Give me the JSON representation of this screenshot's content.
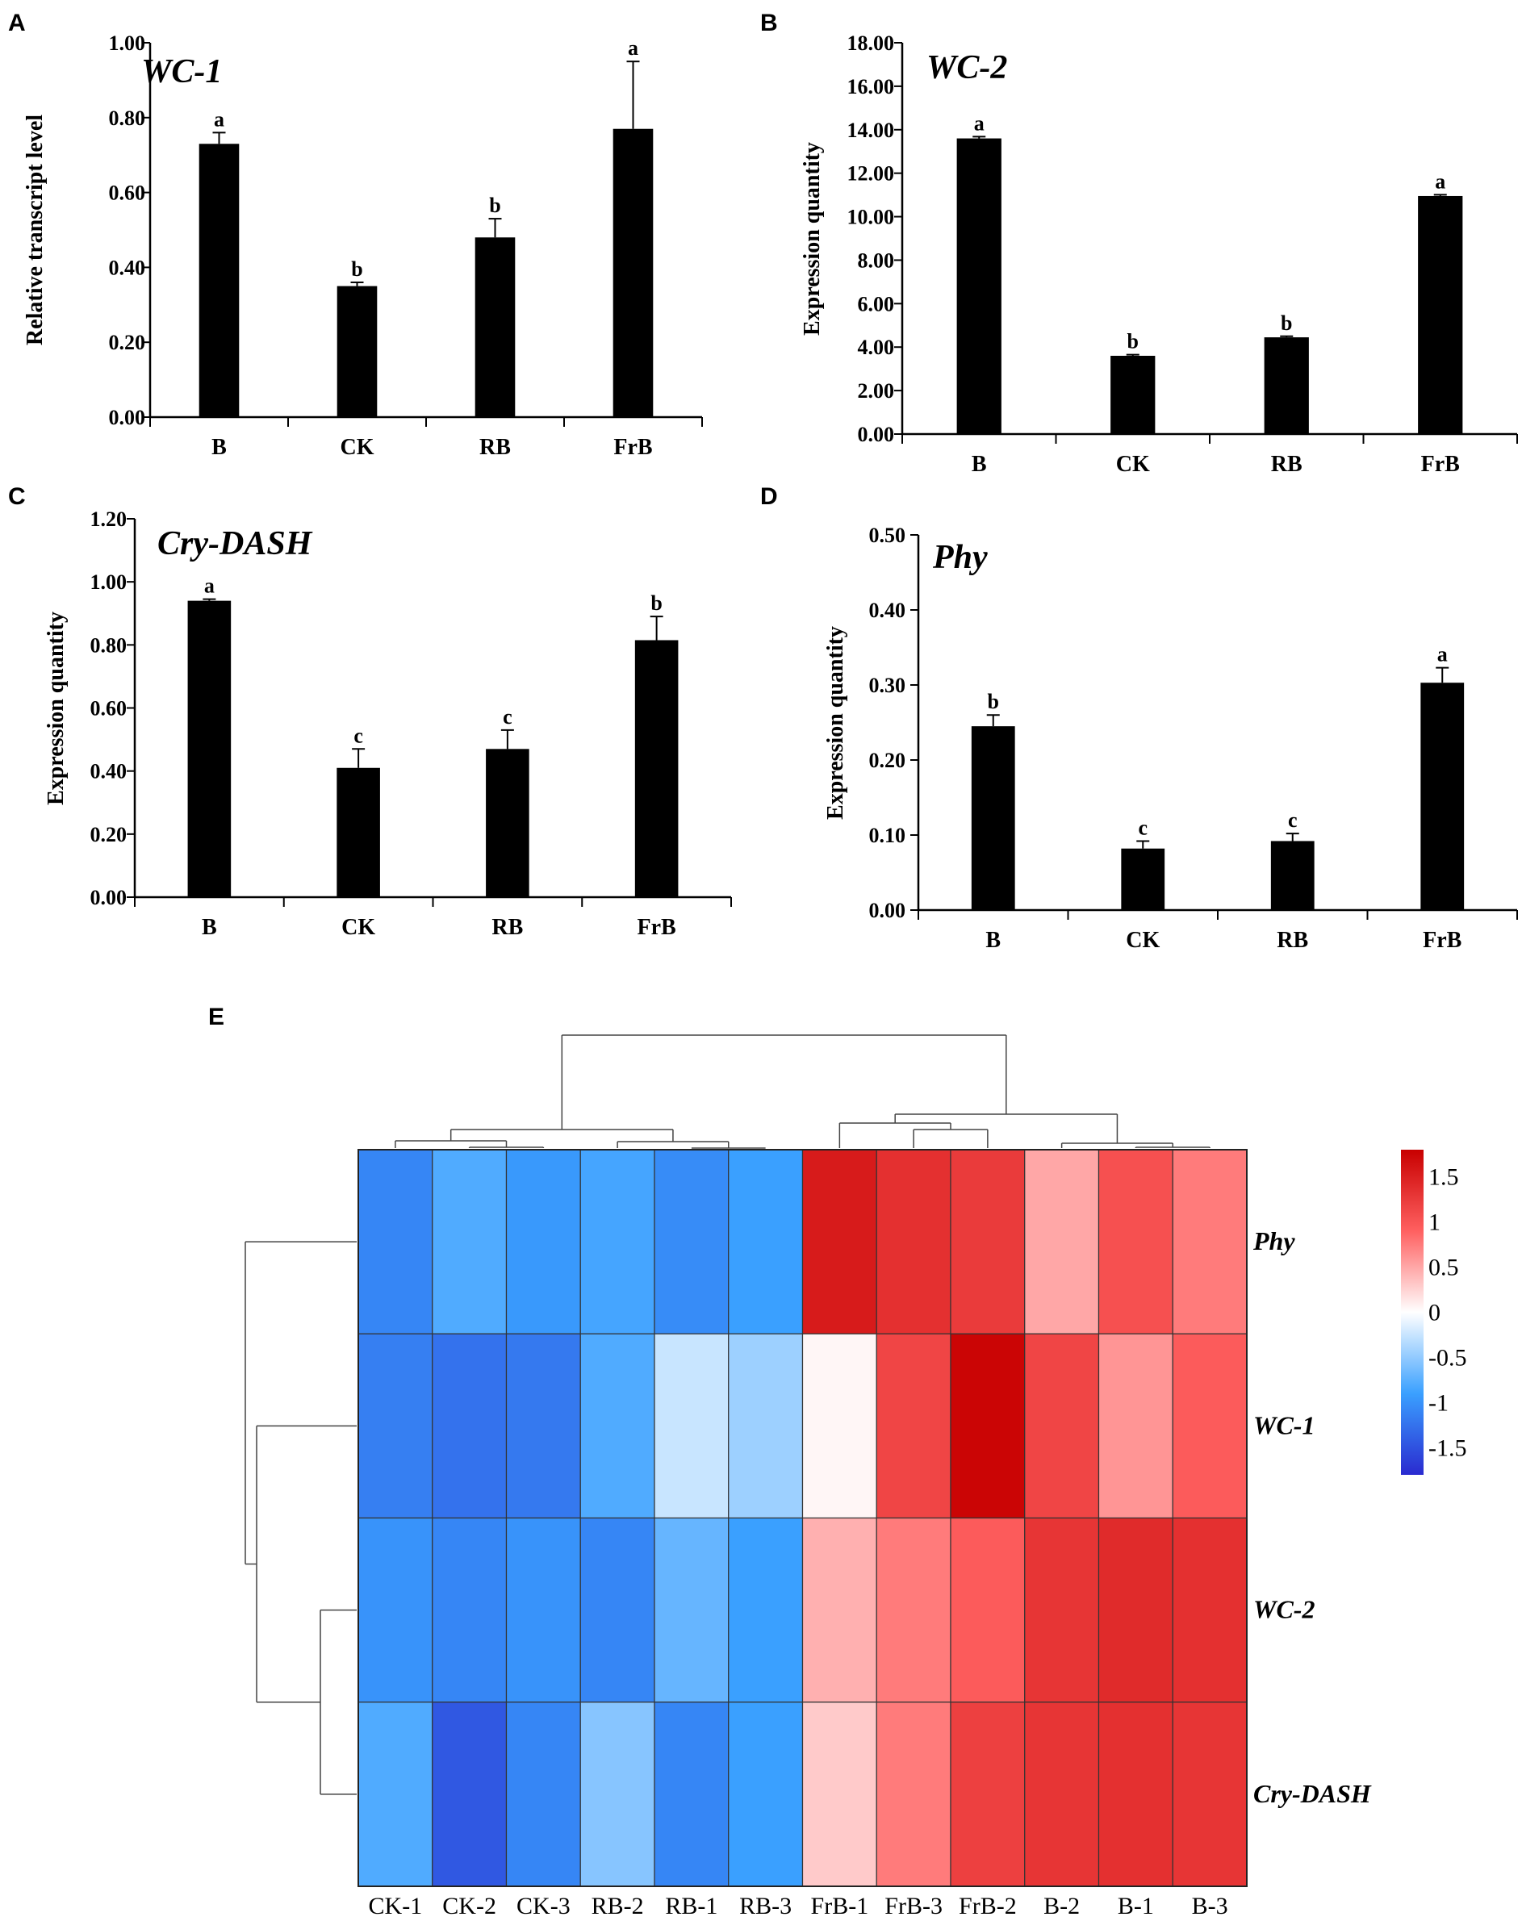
{
  "panels": {
    "A": "A",
    "B": "B",
    "C": "C",
    "D": "D",
    "E": "E"
  },
  "colors": {
    "bar": "#000000",
    "neg": "#2020c8",
    "mid": "#ffffff",
    "pos": "#c80000"
  },
  "chart_data": [
    {
      "type": "bar",
      "panel": "A",
      "title": "WC-1",
      "ylabel": "Relative transcript level",
      "xlabel": "",
      "categories": [
        "B",
        "CK",
        "RB",
        "FrB"
      ],
      "values": [
        0.73,
        0.35,
        0.48,
        0.77
      ],
      "errors": [
        0.03,
        0.01,
        0.05,
        0.18
      ],
      "significance": [
        "a",
        "b",
        "b",
        "a"
      ],
      "ylim": [
        0,
        1.0
      ],
      "yticks": [
        "0.00",
        "0.20",
        "0.40",
        "0.60",
        "0.80",
        "1.00"
      ]
    },
    {
      "type": "bar",
      "panel": "B",
      "title": "WC-2",
      "ylabel": "Expression quantity",
      "xlabel": "",
      "categories": [
        "B",
        "CK",
        "RB",
        "FrB"
      ],
      "values": [
        13.6,
        3.6,
        4.45,
        10.95
      ],
      "errors": [
        0.08,
        0.05,
        0.05,
        0.06
      ],
      "significance": [
        "a",
        "b",
        "b",
        "a"
      ],
      "ylim": [
        0,
        18.0
      ],
      "yticks": [
        "0.00",
        "2.00",
        "4.00",
        "6.00",
        "8.00",
        "10.00",
        "12.00",
        "14.00",
        "16.00",
        "18.00"
      ]
    },
    {
      "type": "bar",
      "panel": "C",
      "title": "Cry-DASH",
      "ylabel": "Expression quantity",
      "xlabel": "",
      "categories": [
        "B",
        "CK",
        "RB",
        "FrB"
      ],
      "values": [
        0.94,
        0.41,
        0.47,
        0.815
      ],
      "errors": [
        0.005,
        0.06,
        0.06,
        0.075
      ],
      "significance": [
        "a",
        "c",
        "c",
        "b"
      ],
      "ylim": [
        0,
        1.2
      ],
      "yticks": [
        "0.00",
        "0.20",
        "0.40",
        "0.60",
        "0.80",
        "1.00",
        "1.20"
      ]
    },
    {
      "type": "bar",
      "panel": "D",
      "title": "Phy",
      "ylabel": "Expression quantity",
      "xlabel": "",
      "categories": [
        "B",
        "CK",
        "RB",
        "FrB"
      ],
      "values": [
        0.245,
        0.082,
        0.092,
        0.303
      ],
      "errors": [
        0.015,
        0.01,
        0.01,
        0.02
      ],
      "significance": [
        "b",
        "c",
        "c",
        "a"
      ],
      "ylim": [
        0,
        0.5
      ],
      "yticks": [
        "0.00",
        "0.10",
        "0.20",
        "0.30",
        "0.40",
        "0.50"
      ]
    },
    {
      "type": "heatmap",
      "panel": "E",
      "columns": [
        "CK-1",
        "CK-2",
        "CK-3",
        "RB-2",
        "RB-1",
        "RB-3",
        "FrB-1",
        "FrB-3",
        "FrB-2",
        "B-2",
        "B-1",
        "B-3"
      ],
      "rows": [
        "Phy",
        "WC-1",
        "WC-2",
        "Cry-DASH"
      ],
      "values": [
        [
          -1.1,
          -0.8,
          -0.95,
          -0.85,
          -1.05,
          -0.9,
          1.55,
          1.35,
          1.25,
          0.5,
          1.05,
          0.75
        ],
        [
          -1.15,
          -1.25,
          -1.2,
          -0.8,
          -0.25,
          -0.45,
          0.05,
          1.15,
          1.75,
          1.15,
          0.6,
          0.95
        ],
        [
          -1.0,
          -1.1,
          -1.0,
          -1.1,
          -0.7,
          -0.9,
          0.45,
          0.75,
          0.95,
          1.3,
          1.4,
          1.35
        ],
        [
          -0.8,
          -1.45,
          -1.1,
          -0.55,
          -1.1,
          -0.9,
          0.3,
          0.75,
          1.2,
          1.3,
          1.35,
          1.3
        ]
      ],
      "colorbar": {
        "min": -1.8,
        "max": 1.8,
        "ticks": [
          "1.5",
          "1",
          "0.5",
          "0",
          "-0.5",
          "-1",
          "-1.5"
        ]
      },
      "column_dendrogram": "(((CK-1,(CK-2,CK-3)),((RB-2,(RB-1,RB-3)))),((FrB-1,(FrB-3,FrB-2)),(B-2,(B-1,B-3))))",
      "row_dendrogram": "(Phy,(WC-1,(WC-2,Cry-DASH)))"
    }
  ]
}
